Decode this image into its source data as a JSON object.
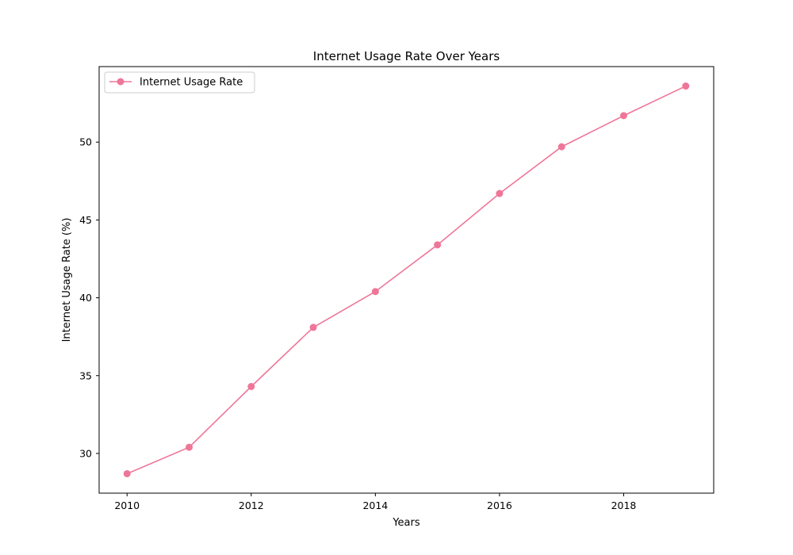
{
  "chart_data": {
    "type": "line",
    "title": "Internet Usage Rate Over Years",
    "xlabel": "Years",
    "ylabel": "Internet Usage Rate (%)",
    "x": [
      2010,
      2011,
      2012,
      2013,
      2014,
      2015,
      2016,
      2017,
      2018,
      2019
    ],
    "series": [
      {
        "name": "Internet Usage Rate",
        "values": [
          28.7,
          30.4,
          34.3,
          38.1,
          40.4,
          43.4,
          46.7,
          49.7,
          51.7,
          53.6
        ],
        "color": "#ee7799",
        "marker": "circle"
      }
    ],
    "xlim": [
      2009.55,
      2019.45
    ],
    "ylim": [
      27.45,
      54.85
    ],
    "xticks": [
      2010,
      2012,
      2014,
      2016,
      2018
    ],
    "yticks": [
      30,
      35,
      40,
      45,
      50
    ],
    "grid": false,
    "legend_position": "top-left"
  }
}
